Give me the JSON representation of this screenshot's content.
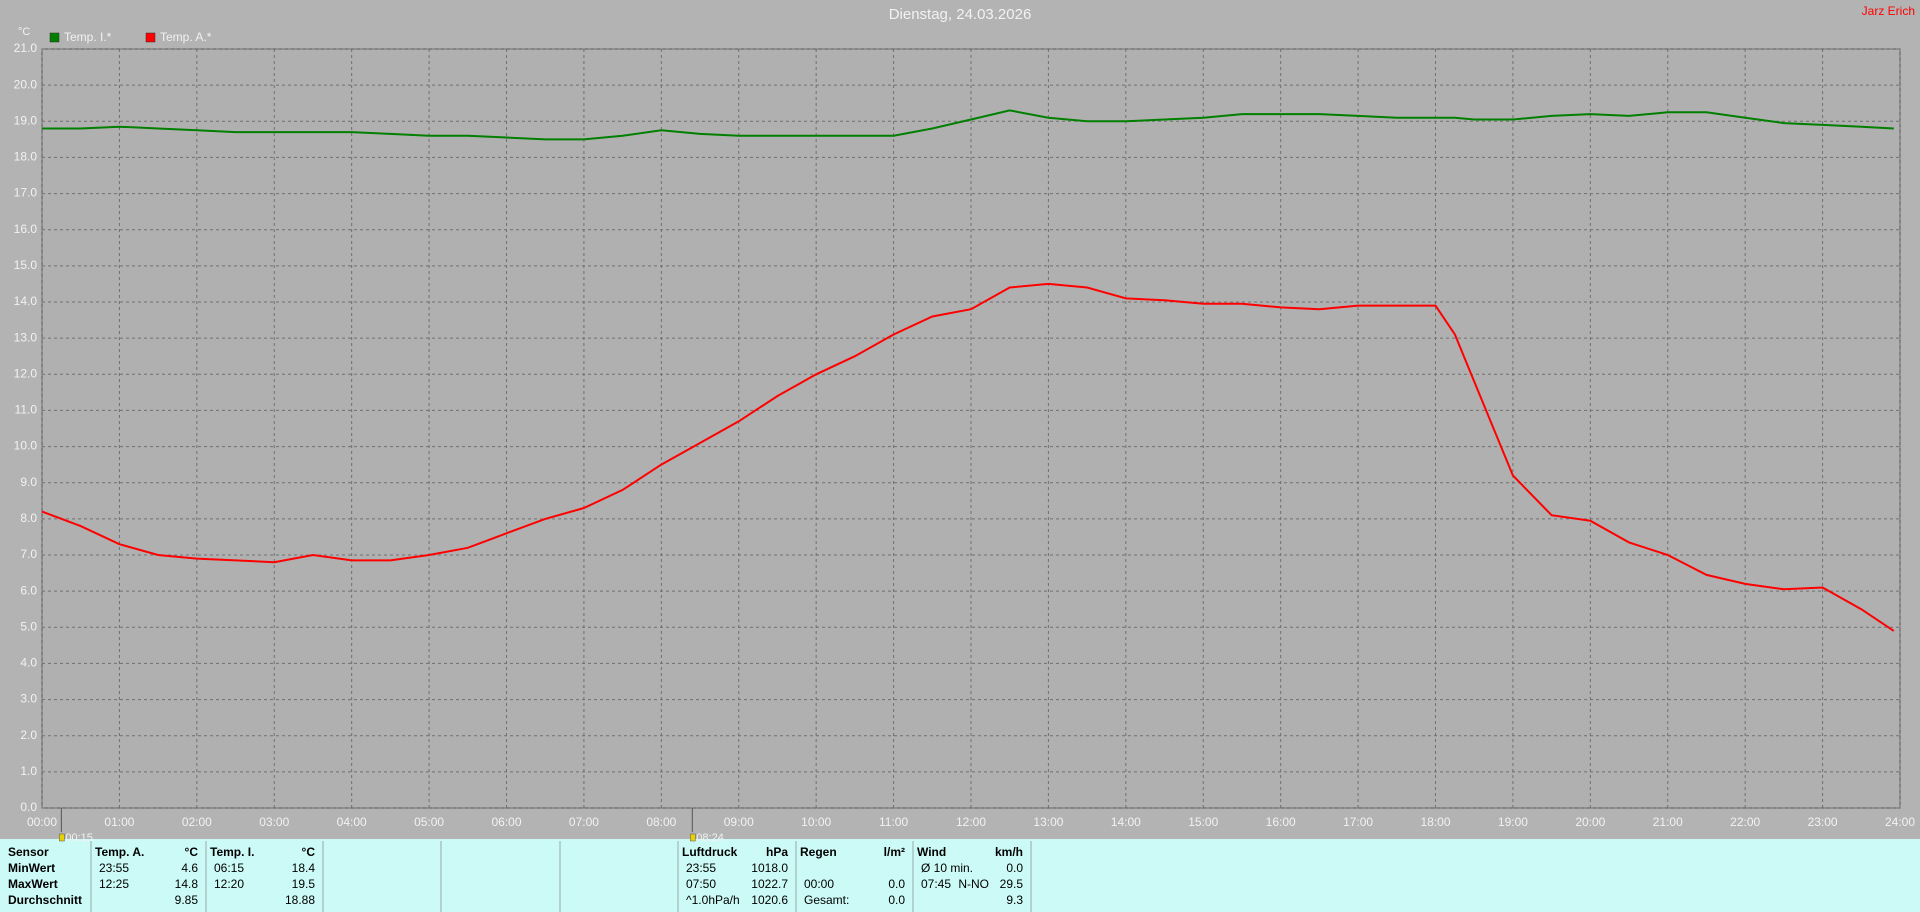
{
  "chart_data": {
    "type": "line",
    "title": "Dienstag, 24.03.2026",
    "author": "Jarz Erich",
    "y_unit": "°C",
    "x": [
      0,
      0.5,
      1,
      1.5,
      2,
      2.5,
      3,
      3.5,
      4,
      4.5,
      5,
      5.5,
      6,
      6.5,
      7,
      7.5,
      8,
      8.5,
      9,
      9.5,
      10,
      10.5,
      11,
      11.5,
      12,
      12.5,
      13,
      13.5,
      14,
      14.5,
      15,
      15.5,
      16,
      16.5,
      17,
      17.5,
      18,
      18.25,
      18.5,
      19,
      19.5,
      20,
      20.5,
      21,
      21.5,
      22,
      22.5,
      23,
      23.5,
      23.92
    ],
    "xlim": [
      0,
      24
    ],
    "xticks": [
      {
        "value": 0,
        "label": "00:00"
      },
      {
        "value": 1,
        "label": "01:00"
      },
      {
        "value": 2,
        "label": "02:00"
      },
      {
        "value": 3,
        "label": "03:00"
      },
      {
        "value": 4,
        "label": "04:00"
      },
      {
        "value": 5,
        "label": "05:00"
      },
      {
        "value": 6,
        "label": "06:00"
      },
      {
        "value": 7,
        "label": "07:00"
      },
      {
        "value": 8,
        "label": "08:00"
      },
      {
        "value": 9,
        "label": "09:00"
      },
      {
        "value": 10,
        "label": "10:00"
      },
      {
        "value": 11,
        "label": "11:00"
      },
      {
        "value": 12,
        "label": "12:00"
      },
      {
        "value": 13,
        "label": "13:00"
      },
      {
        "value": 14,
        "label": "14:00"
      },
      {
        "value": 15,
        "label": "15:00"
      },
      {
        "value": 16,
        "label": "16:00"
      },
      {
        "value": 17,
        "label": "17:00"
      },
      {
        "value": 18,
        "label": "18:00"
      },
      {
        "value": 19,
        "label": "19:00"
      },
      {
        "value": 20,
        "label": "20:00"
      },
      {
        "value": 21,
        "label": "21:00"
      },
      {
        "value": 22,
        "label": "22:00"
      },
      {
        "value": 23,
        "label": "23:00"
      },
      {
        "value": 24,
        "label": "24:00"
      }
    ],
    "ylim": [
      0,
      21
    ],
    "yticks": [
      {
        "value": 0,
        "label": "0.0"
      },
      {
        "value": 1,
        "label": "1.0"
      },
      {
        "value": 2,
        "label": "2.0"
      },
      {
        "value": 3,
        "label": "3.0"
      },
      {
        "value": 4,
        "label": "4.0"
      },
      {
        "value": 5,
        "label": "5.0"
      },
      {
        "value": 6,
        "label": "6.0"
      },
      {
        "value": 7,
        "label": "7.0"
      },
      {
        "value": 8,
        "label": "8.0"
      },
      {
        "value": 9,
        "label": "9.0"
      },
      {
        "value": 10,
        "label": "10.0"
      },
      {
        "value": 11,
        "label": "11.0"
      },
      {
        "value": 12,
        "label": "12.0"
      },
      {
        "value": 13,
        "label": "13.0"
      },
      {
        "value": 14,
        "label": "14.0"
      },
      {
        "value": 15,
        "label": "15.0"
      },
      {
        "value": 16,
        "label": "16.0"
      },
      {
        "value": 17,
        "label": "17.0"
      },
      {
        "value": 18,
        "label": "18.0"
      },
      {
        "value": 19,
        "label": "19.0"
      },
      {
        "value": 20,
        "label": "20.0"
      },
      {
        "value": 21,
        "label": "21.0"
      }
    ],
    "grid": true,
    "series": [
      {
        "name": "Temp. I.*",
        "color": "#007f00",
        "values": [
          18.8,
          18.8,
          18.85,
          18.8,
          18.75,
          18.7,
          18.7,
          18.7,
          18.7,
          18.65,
          18.6,
          18.6,
          18.55,
          18.5,
          18.5,
          18.6,
          18.75,
          18.65,
          18.6,
          18.6,
          18.6,
          18.6,
          18.6,
          18.8,
          19.05,
          19.3,
          19.1,
          19.0,
          19.0,
          19.05,
          19.1,
          19.2,
          19.2,
          19.2,
          19.15,
          19.1,
          19.1,
          19.1,
          19.05,
          19.05,
          19.15,
          19.2,
          19.15,
          19.25,
          19.25,
          19.1,
          18.95,
          18.9,
          18.85,
          18.8
        ]
      },
      {
        "name": "Temp. A.*",
        "color": "#ff0000",
        "values": [
          8.2,
          7.8,
          7.3,
          7.0,
          6.9,
          6.85,
          6.8,
          7.0,
          6.85,
          6.85,
          7.0,
          7.2,
          7.6,
          8.0,
          8.3,
          8.8,
          9.5,
          10.1,
          10.7,
          11.4,
          12.0,
          12.5,
          13.1,
          13.6,
          13.8,
          14.4,
          14.5,
          14.4,
          14.1,
          14.05,
          13.95,
          13.95,
          13.85,
          13.8,
          13.9,
          13.9,
          13.9,
          13.1,
          11.8,
          9.2,
          8.1,
          7.95,
          7.35,
          7.0,
          6.45,
          6.2,
          6.05,
          6.1,
          5.5,
          4.9
        ]
      }
    ],
    "markers": [
      {
        "x": 0.25,
        "label": "00:15"
      },
      {
        "x": 8.4,
        "label": "08:24"
      }
    ]
  },
  "table": {
    "row_labels": [
      "Sensor",
      "MinWert",
      "MaxWert",
      "Durchschnitt"
    ],
    "sections": [
      {
        "header": [
          "Temp. A.",
          "°C"
        ],
        "rows": [
          [
            "23:55",
            "4.6"
          ],
          [
            "12:25",
            "14.8"
          ],
          [
            null,
            "9.85"
          ]
        ]
      },
      {
        "header": [
          "Temp. I.",
          "°C"
        ],
        "rows": [
          [
            "06:15",
            "18.4"
          ],
          [
            "12:20",
            "19.5"
          ],
          [
            null,
            "18.88"
          ]
        ]
      },
      {
        "header": [
          "Luftdruck",
          "hPa"
        ],
        "rows": [
          [
            "23:55",
            "1018.0"
          ],
          [
            "07:50",
            "1022.7"
          ],
          [
            "^1.0hPa/h",
            "1020.6"
          ]
        ]
      },
      {
        "header": [
          "Regen",
          "l/m²"
        ],
        "rows": [
          [
            null,
            null
          ],
          [
            "00:00",
            "0.0"
          ],
          [
            "Gesamt:",
            "0.0"
          ]
        ]
      },
      {
        "header": [
          "Wind",
          "km/h"
        ],
        "rows": [
          [
            "Ø 10 min.",
            "0.0"
          ],
          [
            "07:45",
            "N-NO",
            "29.5"
          ],
          [
            null,
            "9.3"
          ]
        ]
      }
    ]
  }
}
